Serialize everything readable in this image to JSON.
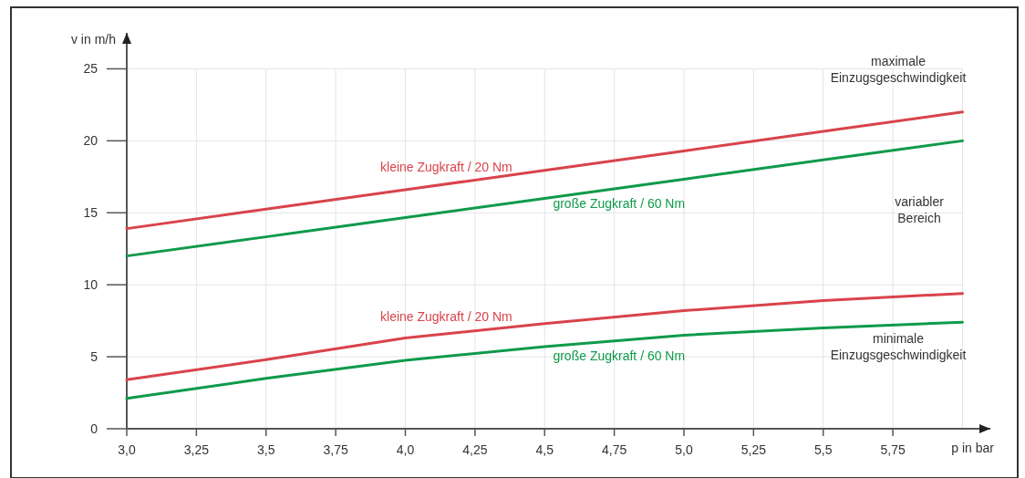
{
  "chart_data": {
    "type": "line",
    "xlabel": "p in bar",
    "ylabel": "v in m/h",
    "xlim": [
      3,
      6.1
    ],
    "xticks": [
      {
        "value": 3,
        "label": "3,0"
      },
      {
        "value": 3.25,
        "label": "3,25"
      },
      {
        "value": 3.5,
        "label": "3,5"
      },
      {
        "value": 3.75,
        "label": "3,75"
      },
      {
        "value": 4,
        "label": "4,0"
      },
      {
        "value": 4.25,
        "label": "4,25"
      },
      {
        "value": 4.5,
        "label": "4,5"
      },
      {
        "value": 4.75,
        "label": "4,75"
      },
      {
        "value": 5,
        "label": "5,0"
      },
      {
        "value": 5.25,
        "label": "5,25"
      },
      {
        "value": 5.5,
        "label": "5,5"
      },
      {
        "value": 5.75,
        "label": "5,75"
      },
      {
        "value": 6,
        "label": null
      }
    ],
    "ylim": [
      0,
      27.5
    ],
    "yticks": [
      0,
      5,
      10,
      15,
      20,
      25
    ],
    "x": [
      3,
      3.5,
      4,
      4.5,
      5,
      5.5,
      6
    ],
    "series": [
      {
        "name": "kleine Zugkraft / 20 Nm",
        "color": "#d9434b",
        "values": [
          13.9,
          15.25,
          16.6,
          17.95,
          19.3,
          20.65,
          22
        ]
      },
      {
        "name": "große Zugkraft / 60 Nm",
        "color": "#0f9a4a",
        "values": [
          12,
          13.33,
          14.67,
          16,
          17.33,
          18.67,
          20
        ]
      },
      {
        "name": "kleine Zugkraft / 20 Nm",
        "color": "#d9434b",
        "values": [
          3.4,
          4.8,
          6.3,
          7.3,
          8.2,
          8.9,
          9.4
        ]
      },
      {
        "name": "große Zugkraft / 60 Nm",
        "color": "#0f9a4a",
        "values": [
          2.1,
          3.5,
          4.75,
          5.7,
          6.5,
          7,
          7.4
        ]
      }
    ],
    "annotations": [
      "maximale Einzugsgeschwindigkeit",
      "variabler Bereich",
      "minimale Einzugsgeschwindigkeit"
    ],
    "grid": true,
    "marker": "none",
    "line_style": "solid"
  }
}
